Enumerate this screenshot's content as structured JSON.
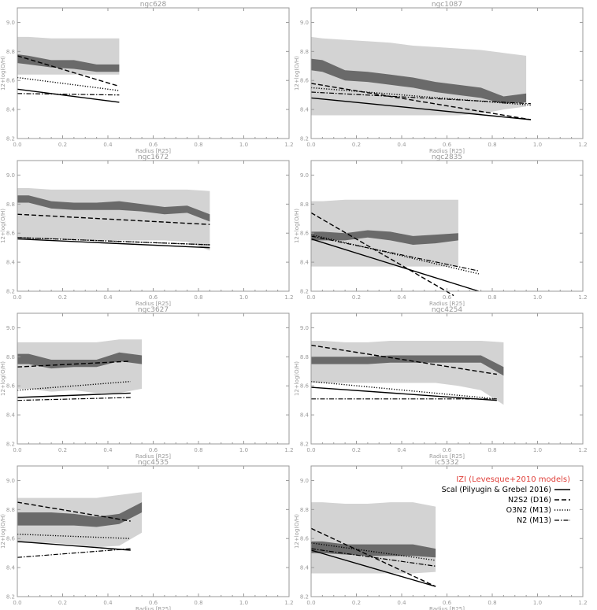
{
  "colors": {
    "outer_band": "#d3d3d3",
    "inner_band": "#6a6a6a",
    "axis": "#9a9a9a",
    "legend_title": "#e0403a"
  },
  "legend": {
    "title": "IZI (Levesque+2010 models)",
    "entries": [
      {
        "label": "Scal (Pilyugin & Grebel 2016)",
        "style": "solid"
      },
      {
        "label": "N2S2 (D16)",
        "style": "dashed"
      },
      {
        "label": "O3N2 (M13)",
        "style": "dotted"
      },
      {
        "label": "N2 (M13)",
        "style": "dashdot"
      }
    ]
  },
  "chart_data": [
    {
      "type": "line",
      "title": "ngc628",
      "xlabel": "Radius [R25]",
      "ylabel": "12+log(O/H)",
      "xlim": [
        0,
        1.2
      ],
      "ylim": [
        8.2,
        9.1
      ],
      "xticks": [
        "0.0",
        "0.2",
        "0.4",
        "0.6",
        "0.8",
        "1.0",
        "1.2"
      ],
      "yticks": [
        "8.2",
        "8.4",
        "8.6",
        "8.8",
        "9.0"
      ],
      "bands": {
        "x": [
          0.0,
          0.05,
          0.15,
          0.25,
          0.35,
          0.45
        ],
        "outer_low": [
          8.64,
          8.64,
          8.64,
          8.64,
          8.64,
          8.64
        ],
        "outer_high": [
          8.9,
          8.9,
          8.89,
          8.89,
          8.89,
          8.89
        ],
        "inner_low": [
          8.72,
          8.71,
          8.69,
          8.68,
          8.66,
          8.66
        ],
        "inner_high": [
          8.78,
          8.77,
          8.74,
          8.74,
          8.71,
          8.71
        ]
      },
      "series": [
        {
          "style": "solid",
          "x": [
            0.0,
            0.45
          ],
          "y": [
            8.54,
            8.45
          ]
        },
        {
          "style": "dashed",
          "x": [
            0.0,
            0.45
          ],
          "y": [
            8.77,
            8.56
          ]
        },
        {
          "style": "dotted",
          "x": [
            0.0,
            0.45
          ],
          "y": [
            8.62,
            8.53
          ]
        },
        {
          "style": "dashdot",
          "x": [
            0.0,
            0.45
          ],
          "y": [
            8.51,
            8.5
          ]
        }
      ]
    },
    {
      "type": "line",
      "title": "ngc1087",
      "xlabel": "Radius [R25]",
      "ylabel": "12+log(O/H)",
      "xlim": [
        0,
        1.2
      ],
      "ylim": [
        8.2,
        9.1
      ],
      "xticks": [
        "0.0",
        "0.2",
        "0.4",
        "0.6",
        "0.8",
        "1.0",
        "1.2"
      ],
      "yticks": [
        "8.2",
        "8.4",
        "8.6",
        "8.8",
        "9.0"
      ],
      "bands": {
        "x": [
          0.0,
          0.05,
          0.15,
          0.25,
          0.35,
          0.45,
          0.55,
          0.65,
          0.75,
          0.85,
          0.95
        ],
        "outer_low": [
          8.36,
          8.36,
          8.36,
          8.36,
          8.36,
          8.36,
          8.36,
          8.36,
          8.37,
          8.4,
          8.42
        ],
        "outer_high": [
          8.9,
          8.89,
          8.88,
          8.87,
          8.86,
          8.84,
          8.83,
          8.82,
          8.81,
          8.79,
          8.77
        ],
        "inner_low": [
          8.67,
          8.66,
          8.6,
          8.59,
          8.57,
          8.55,
          8.52,
          8.5,
          8.48,
          8.44,
          8.45
        ],
        "inner_high": [
          8.75,
          8.74,
          8.67,
          8.66,
          8.64,
          8.62,
          8.59,
          8.57,
          8.55,
          8.49,
          8.51
        ]
      },
      "series": [
        {
          "style": "solid",
          "x": [
            0.0,
            0.97
          ],
          "y": [
            8.48,
            8.33
          ]
        },
        {
          "style": "dashed",
          "x": [
            0.0,
            0.97
          ],
          "y": [
            8.58,
            8.33
          ]
        },
        {
          "style": "dotted",
          "x": [
            0.0,
            0.97
          ],
          "y": [
            8.55,
            8.43
          ]
        },
        {
          "style": "dashdot",
          "x": [
            0.0,
            0.97
          ],
          "y": [
            8.52,
            8.44
          ]
        }
      ]
    },
    {
      "type": "line",
      "title": "ngc1672",
      "xlabel": "Radius [R25]",
      "ylabel": "12+log(O/H)",
      "xlim": [
        0,
        1.2
      ],
      "ylim": [
        8.2,
        9.1
      ],
      "xticks": [
        "0.0",
        "0.2",
        "0.4",
        "0.6",
        "0.8",
        "1.0",
        "1.2"
      ],
      "yticks": [
        "8.2",
        "8.4",
        "8.6",
        "8.8",
        "9.0"
      ],
      "bands": {
        "x": [
          0.0,
          0.05,
          0.15,
          0.25,
          0.35,
          0.45,
          0.55,
          0.65,
          0.75,
          0.85
        ],
        "outer_low": [
          8.57,
          8.56,
          8.56,
          8.56,
          8.55,
          8.55,
          8.55,
          8.55,
          8.54,
          8.48
        ],
        "outer_high": [
          8.91,
          8.91,
          8.9,
          8.9,
          8.9,
          8.9,
          8.9,
          8.9,
          8.9,
          8.89
        ],
        "inner_low": [
          8.81,
          8.81,
          8.77,
          8.76,
          8.76,
          8.76,
          8.75,
          8.73,
          8.74,
          8.68
        ],
        "inner_high": [
          8.86,
          8.86,
          8.82,
          8.81,
          8.81,
          8.82,
          8.8,
          8.78,
          8.79,
          8.73
        ]
      },
      "series": [
        {
          "style": "solid",
          "x": [
            0.0,
            0.85
          ],
          "y": [
            8.56,
            8.5
          ]
        },
        {
          "style": "dashed",
          "x": [
            0.0,
            0.85
          ],
          "y": [
            8.73,
            8.66
          ]
        },
        {
          "style": "dotted",
          "x": [
            0.0,
            0.85
          ],
          "y": [
            8.57,
            8.52
          ]
        },
        {
          "style": "dashdot",
          "x": [
            0.0,
            0.85
          ],
          "y": [
            8.57,
            8.52
          ]
        }
      ]
    },
    {
      "type": "line",
      "title": "ngc2835",
      "xlabel": "Radius [R25]",
      "ylabel": "12+log(O/H)",
      "xlim": [
        0,
        1.2
      ],
      "ylim": [
        8.2,
        9.1
      ],
      "xticks": [
        "0.0",
        "0.2",
        "0.4",
        "0.6",
        "0.8",
        "1.0",
        "1.2"
      ],
      "yticks": [
        "8.2",
        "8.4",
        "8.6",
        "8.8",
        "9.0"
      ],
      "bands": {
        "x": [
          0.0,
          0.05,
          0.15,
          0.25,
          0.35,
          0.45,
          0.55,
          0.65
        ],
        "outer_low": [
          8.37,
          8.37,
          8.37,
          8.37,
          8.37,
          8.37,
          8.37,
          8.37
        ],
        "outer_high": [
          8.82,
          8.82,
          8.83,
          8.83,
          8.83,
          8.83,
          8.83,
          8.83
        ],
        "inner_low": [
          8.55,
          8.55,
          8.55,
          8.57,
          8.55,
          8.52,
          8.53,
          8.55
        ],
        "inner_high": [
          8.61,
          8.61,
          8.6,
          8.62,
          8.61,
          8.58,
          8.59,
          8.6
        ]
      },
      "series": [
        {
          "style": "solid",
          "x": [
            0.0,
            0.74
          ],
          "y": [
            8.56,
            8.2
          ]
        },
        {
          "style": "dashed",
          "x": [
            0.0,
            0.63
          ],
          "y": [
            8.74,
            8.17
          ]
        },
        {
          "style": "dotted",
          "x": [
            0.0,
            0.74
          ],
          "y": [
            8.59,
            8.32
          ]
        },
        {
          "style": "dashdot",
          "x": [
            0.0,
            0.74
          ],
          "y": [
            8.58,
            8.34
          ]
        }
      ]
    },
    {
      "type": "line",
      "title": "ngc3627",
      "xlabel": "Radius [R25]",
      "ylabel": "12+log(O/H)",
      "xlim": [
        0,
        1.2
      ],
      "ylim": [
        8.2,
        9.1
      ],
      "xticks": [
        "0.0",
        "0.2",
        "0.4",
        "0.6",
        "0.8",
        "1.0",
        "1.2"
      ],
      "yticks": [
        "8.2",
        "8.4",
        "8.6",
        "8.8",
        "9.0"
      ],
      "bands": {
        "x": [
          0.0,
          0.05,
          0.15,
          0.25,
          0.35,
          0.45,
          0.55
        ],
        "outer_low": [
          8.58,
          8.58,
          8.56,
          8.57,
          8.55,
          8.55,
          8.58
        ],
        "outer_high": [
          8.9,
          8.9,
          8.9,
          8.9,
          8.9,
          8.92,
          8.92
        ],
        "inner_low": [
          8.75,
          8.75,
          8.72,
          8.73,
          8.73,
          8.77,
          8.75
        ],
        "inner_high": [
          8.82,
          8.82,
          8.78,
          8.78,
          8.78,
          8.83,
          8.81
        ]
      },
      "series": [
        {
          "style": "solid",
          "x": [
            0.0,
            0.5
          ],
          "y": [
            8.52,
            8.55
          ]
        },
        {
          "style": "dashed",
          "x": [
            0.0,
            0.5
          ],
          "y": [
            8.73,
            8.77
          ]
        },
        {
          "style": "dotted",
          "x": [
            0.0,
            0.5
          ],
          "y": [
            8.57,
            8.63
          ]
        },
        {
          "style": "dashdot",
          "x": [
            0.0,
            0.5
          ],
          "y": [
            8.5,
            8.52
          ]
        }
      ]
    },
    {
      "type": "line",
      "title": "ngc4254",
      "xlabel": "Radius [R25]",
      "ylabel": "12+log(O/H)",
      "xlim": [
        0,
        1.2
      ],
      "ylim": [
        8.2,
        9.1
      ],
      "xticks": [
        "0.0",
        "0.2",
        "0.4",
        "0.6",
        "0.8",
        "1.0",
        "1.2"
      ],
      "yticks": [
        "8.2",
        "8.4",
        "8.6",
        "8.8",
        "9.0"
      ],
      "bands": {
        "x": [
          0.0,
          0.05,
          0.15,
          0.25,
          0.35,
          0.45,
          0.55,
          0.65,
          0.75,
          0.85
        ],
        "outer_low": [
          8.62,
          8.62,
          8.62,
          8.62,
          8.62,
          8.62,
          8.62,
          8.6,
          8.57,
          8.47
        ],
        "outer_high": [
          8.91,
          8.91,
          8.9,
          8.9,
          8.91,
          8.91,
          8.91,
          8.91,
          8.91,
          8.9
        ],
        "inner_low": [
          8.75,
          8.75,
          8.75,
          8.75,
          8.76,
          8.76,
          8.76,
          8.76,
          8.76,
          8.67
        ],
        "inner_high": [
          8.8,
          8.8,
          8.8,
          8.8,
          8.81,
          8.81,
          8.81,
          8.81,
          8.81,
          8.73
        ]
      },
      "series": [
        {
          "style": "solid",
          "x": [
            0.0,
            0.82
          ],
          "y": [
            8.59,
            8.5
          ]
        },
        {
          "style": "dashed",
          "x": [
            0.0,
            0.82
          ],
          "y": [
            8.88,
            8.68
          ]
        },
        {
          "style": "dotted",
          "x": [
            0.0,
            0.82
          ],
          "y": [
            8.63,
            8.51
          ]
        },
        {
          "style": "dashdot",
          "x": [
            0.0,
            0.82
          ],
          "y": [
            8.51,
            8.51
          ]
        }
      ]
    },
    {
      "type": "line",
      "title": "ngc4535",
      "xlabel": "Radius [R25]",
      "ylabel": "12+log(O/H)",
      "xlim": [
        0,
        1.2
      ],
      "ylim": [
        8.2,
        9.1
      ],
      "xticks": [
        "0.0",
        "0.2",
        "0.4",
        "0.6",
        "0.8",
        "1.0",
        "1.2"
      ],
      "yticks": [
        "8.2",
        "8.4",
        "8.6",
        "8.8",
        "9.0"
      ],
      "bands": {
        "x": [
          0.0,
          0.05,
          0.15,
          0.25,
          0.35,
          0.45,
          0.55
        ],
        "outer_low": [
          8.57,
          8.57,
          8.57,
          8.56,
          8.54,
          8.55,
          8.64
        ],
        "outer_high": [
          8.88,
          8.88,
          8.88,
          8.88,
          8.88,
          8.9,
          8.92
        ],
        "inner_low": [
          8.69,
          8.69,
          8.69,
          8.69,
          8.68,
          8.7,
          8.78
        ],
        "inner_high": [
          8.78,
          8.78,
          8.78,
          8.77,
          8.75,
          8.77,
          8.85
        ]
      },
      "series": [
        {
          "style": "solid",
          "x": [
            0.0,
            0.5
          ],
          "y": [
            8.58,
            8.52
          ]
        },
        {
          "style": "dashed",
          "x": [
            0.0,
            0.5
          ],
          "y": [
            8.85,
            8.72
          ]
        },
        {
          "style": "dotted",
          "x": [
            0.0,
            0.5
          ],
          "y": [
            8.63,
            8.6
          ]
        },
        {
          "style": "dashdot",
          "x": [
            0.0,
            0.5
          ],
          "y": [
            8.47,
            8.53
          ]
        }
      ]
    },
    {
      "type": "line",
      "title": "ic5332",
      "xlabel": "Radius [R25]",
      "ylabel": "12+log(O/H)",
      "xlim": [
        0,
        1.2
      ],
      "ylim": [
        8.2,
        9.1
      ],
      "xticks": [
        "0.0",
        "0.2",
        "0.4",
        "0.6",
        "0.8",
        "1.0",
        "1.2"
      ],
      "yticks": [
        "8.2",
        "8.4",
        "8.6",
        "8.8",
        "9.0"
      ],
      "bands": {
        "x": [
          0.0,
          0.05,
          0.15,
          0.25,
          0.35,
          0.45,
          0.55
        ],
        "outer_low": [
          8.36,
          8.36,
          8.36,
          8.36,
          8.36,
          8.36,
          8.37
        ],
        "outer_high": [
          8.85,
          8.85,
          8.84,
          8.84,
          8.85,
          8.85,
          8.82
        ],
        "inner_low": [
          8.5,
          8.5,
          8.49,
          8.48,
          8.48,
          8.48,
          8.47
        ],
        "inner_high": [
          8.58,
          8.58,
          8.56,
          8.56,
          8.56,
          8.56,
          8.53
        ]
      },
      "series": [
        {
          "style": "solid",
          "x": [
            0.0,
            0.55
          ],
          "y": [
            8.52,
            8.27
          ]
        },
        {
          "style": "dashed",
          "x": [
            0.0,
            0.55
          ],
          "y": [
            8.67,
            8.27
          ]
        },
        {
          "style": "dotted",
          "x": [
            0.0,
            0.55
          ],
          "y": [
            8.57,
            8.45
          ]
        },
        {
          "style": "dashdot",
          "x": [
            0.0,
            0.55
          ],
          "y": [
            8.53,
            8.41
          ]
        }
      ]
    }
  ]
}
